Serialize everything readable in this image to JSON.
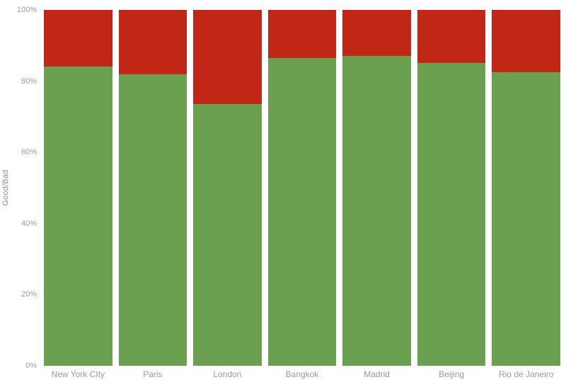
{
  "chart_data": {
    "type": "bar",
    "subtype": "stacked-100-percent",
    "title": "",
    "xlabel": "",
    "ylabel": "Good/Bad",
    "ylim": [
      0,
      100
    ],
    "yticks": [
      "0%",
      "20%",
      "40%",
      "60%",
      "80%",
      "100%"
    ],
    "ytick_values": [
      0,
      20,
      40,
      60,
      80,
      100
    ],
    "grid": false,
    "legend": "none",
    "categories": [
      "New York CIty",
      "Paris",
      "London",
      "Bangkok",
      "Madrid",
      "Beijing",
      "Rio de Janeiro"
    ],
    "series": [
      {
        "name": "Good",
        "color": "#6aa04f",
        "values": [
          84,
          82,
          73.5,
          86.5,
          87,
          85,
          82.5
        ]
      },
      {
        "name": "Bad",
        "color": "#c12717",
        "values": [
          16,
          18,
          26.5,
          13.5,
          13,
          15,
          17.5
        ]
      }
    ]
  }
}
